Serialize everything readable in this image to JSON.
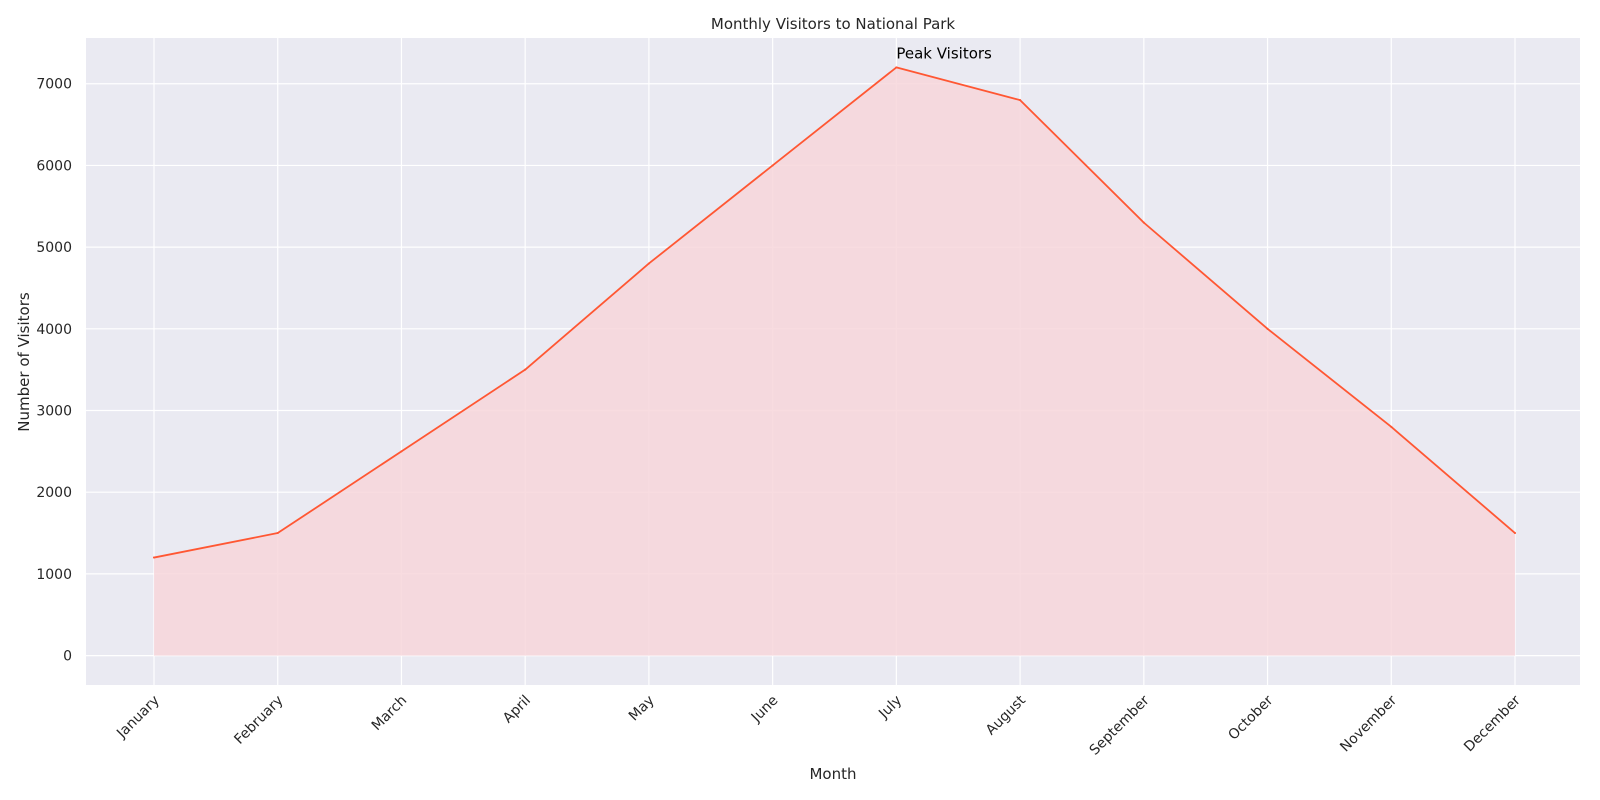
{
  "chart_data": {
    "type": "area",
    "title": "Monthly Visitors to National Park",
    "xlabel": "Month",
    "ylabel": "Number of Visitors",
    "categories": [
      "January",
      "February",
      "March",
      "April",
      "May",
      "June",
      "July",
      "August",
      "September",
      "October",
      "November",
      "December"
    ],
    "values": [
      1200,
      1500,
      2500,
      3500,
      4800,
      6000,
      7200,
      6800,
      5300,
      4000,
      2800,
      1500
    ],
    "ylim": [
      -360,
      7560
    ],
    "yticks": [
      0,
      1000,
      2000,
      3000,
      4000,
      5000,
      6000,
      7000
    ],
    "grid": true,
    "annotations": [
      {
        "text": "Peak Visitors",
        "category": "July",
        "value": 7200
      }
    ],
    "colors": {
      "line": "#ff5733",
      "fill": "#f7d6db",
      "background": "#eaeaf2",
      "grid": "#ffffff"
    }
  }
}
